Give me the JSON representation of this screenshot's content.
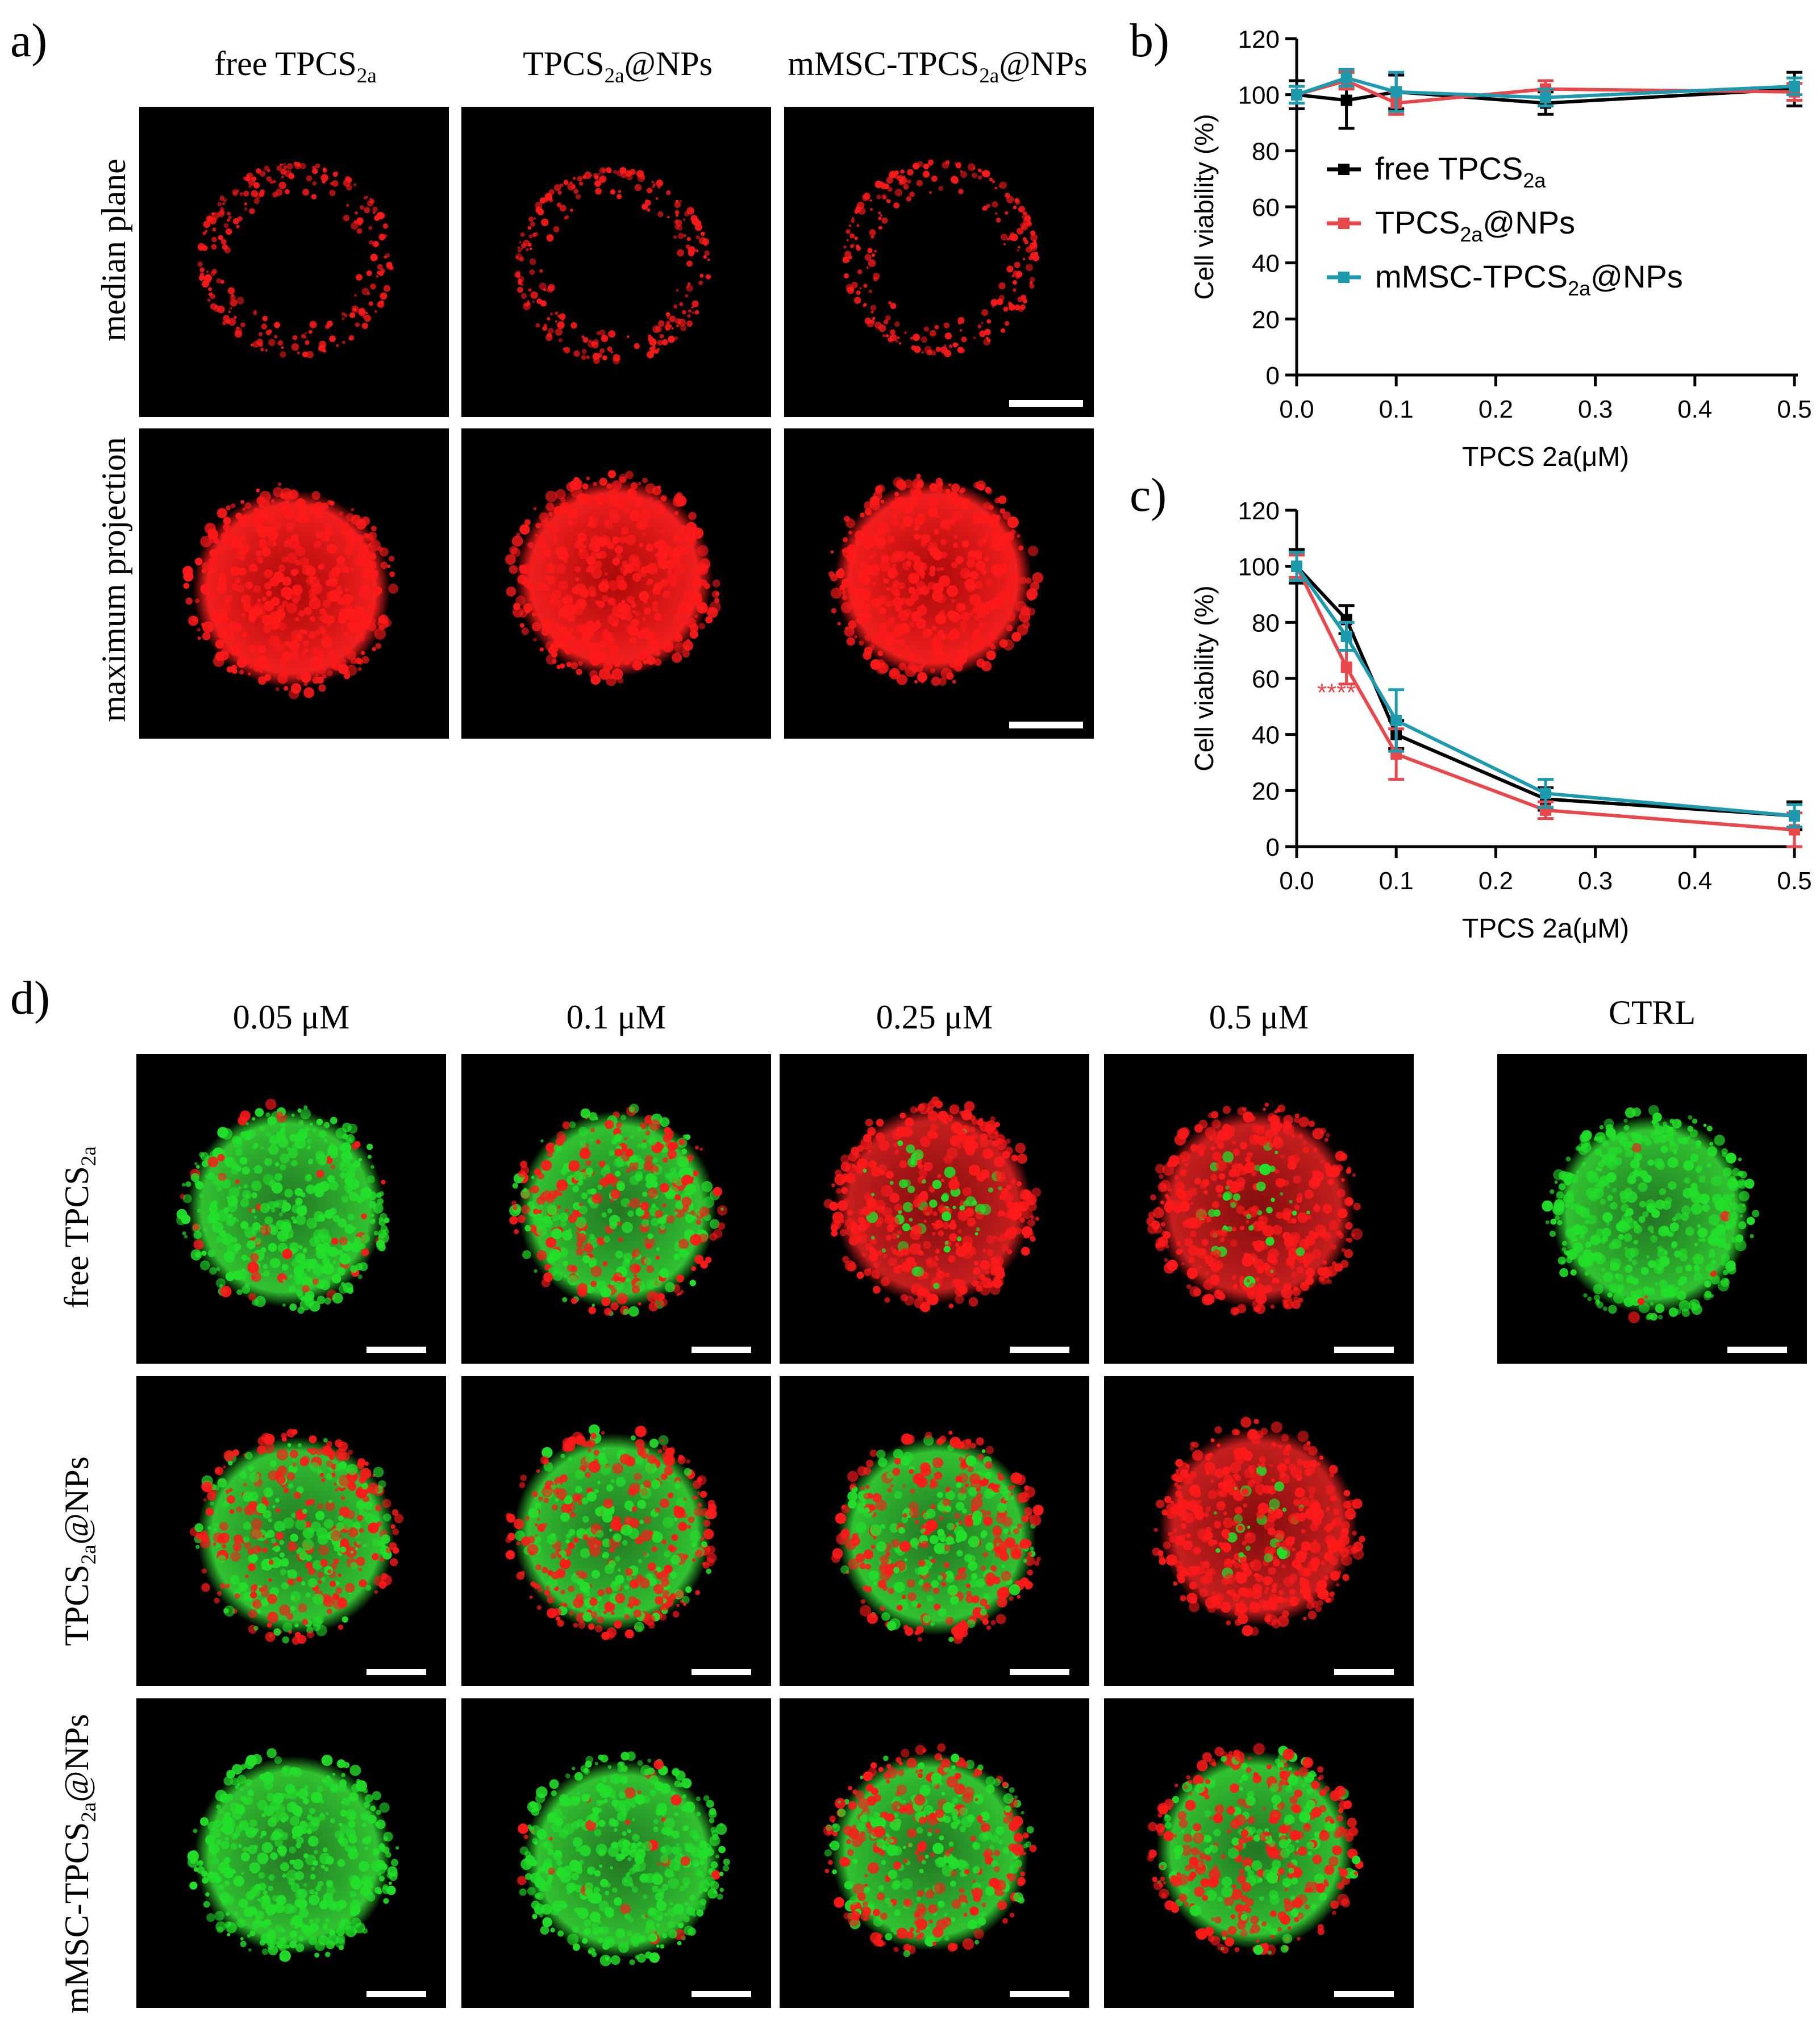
{
  "panels": {
    "a": {
      "label": "a)",
      "columns": [
        {
          "main": "free TPCS",
          "sub": "2a",
          "tail": ""
        },
        {
          "main": "TPCS",
          "sub": "2a",
          "tail": "@NPs"
        },
        {
          "main": "mMSC-TPCS",
          "sub": "2a",
          "tail": "@NPs"
        }
      ],
      "rows": [
        "median plane",
        "maximum projection"
      ]
    },
    "b": {
      "label": "b)"
    },
    "c": {
      "label": "c)",
      "significance": "****"
    },
    "d": {
      "label": "d)",
      "columns": [
        "0.05 μM",
        "0.1 μM",
        "0.25 μM",
        "0.5 μM"
      ],
      "ctrl": "CTRL",
      "rows": [
        {
          "main": "free TPCS",
          "sub": "2a",
          "tail": ""
        },
        {
          "main": "TPCS",
          "sub": "2a",
          "tail": "@NPs"
        },
        {
          "main": "mMSC-TPCS",
          "sub": "2a",
          "tail": "@NPs"
        }
      ]
    }
  },
  "colors": {
    "free": "#000000",
    "nps": "#e8474c",
    "mmsc": "#1e9aae",
    "red_signal": "#ff1a1a",
    "green_signal": "#22e02a"
  },
  "chart_data": [
    {
      "type": "line",
      "panel": "b",
      "xlabel": "TPCS 2a(μM)",
      "ylabel": "Cell viability (%)",
      "xlim": [
        0,
        0.5
      ],
      "ylim": [
        0,
        120
      ],
      "xticks": [
        "0.0",
        "0.1",
        "0.2",
        "0.3",
        "0.4",
        "0.5"
      ],
      "yticks": [
        "0",
        "20",
        "40",
        "60",
        "80",
        "100",
        "120"
      ],
      "legend_position": "middle-left",
      "x": [
        0,
        0.05,
        0.1,
        0.25,
        0.5
      ],
      "series": [
        {
          "name": "free TPCS2a",
          "legend": {
            "main": "free TPCS",
            "sub": "2a",
            "tail": ""
          },
          "color": "#000000",
          "values": [
            100,
            98,
            101,
            97,
            102
          ],
          "err": [
            5,
            10,
            6,
            4,
            6
          ]
        },
        {
          "name": "TPCS2a@NPs",
          "legend": {
            "main": "TPCS",
            "sub": "2a",
            "tail": "@NPs"
          },
          "color": "#e8474c",
          "values": [
            100,
            105,
            97,
            102,
            101
          ],
          "err": [
            3,
            3,
            4,
            3,
            3
          ]
        },
        {
          "name": "mMSC-TPCS2a@NPs",
          "legend": {
            "main": "mMSC-TPCS",
            "sub": "2a",
            "tail": "@NPs"
          },
          "color": "#1e9aae",
          "values": [
            100,
            106,
            101,
            99,
            103
          ],
          "err": [
            3,
            3,
            7,
            3,
            3
          ]
        }
      ]
    },
    {
      "type": "line",
      "panel": "c",
      "xlabel": "TPCS 2a(μM)",
      "ylabel": "Cell viability (%)",
      "xlim": [
        0,
        0.5
      ],
      "ylim": [
        0,
        120
      ],
      "xticks": [
        "0.0",
        "0.1",
        "0.2",
        "0.3",
        "0.4",
        "0.5"
      ],
      "yticks": [
        "0",
        "20",
        "40",
        "60",
        "80",
        "100",
        "120"
      ],
      "annotation": {
        "text": "****",
        "x": 0.04,
        "y": 52
      },
      "x": [
        0,
        0.05,
        0.1,
        0.25,
        0.5
      ],
      "series": [
        {
          "name": "free TPCS2a",
          "color": "#000000",
          "values": [
            100,
            81,
            40,
            17,
            11
          ],
          "err": [
            6,
            5,
            5,
            4,
            5
          ]
        },
        {
          "name": "TPCS2a@NPs",
          "color": "#e8474c",
          "values": [
            100,
            64,
            33,
            13,
            6
          ],
          "err": [
            4,
            6,
            9,
            3,
            6
          ]
        },
        {
          "name": "mMSC-TPCS2a@NPs",
          "color": "#1e9aae",
          "values": [
            100,
            75,
            45,
            19,
            11
          ],
          "err": [
            5,
            5,
            11,
            5,
            4
          ]
        }
      ]
    }
  ]
}
